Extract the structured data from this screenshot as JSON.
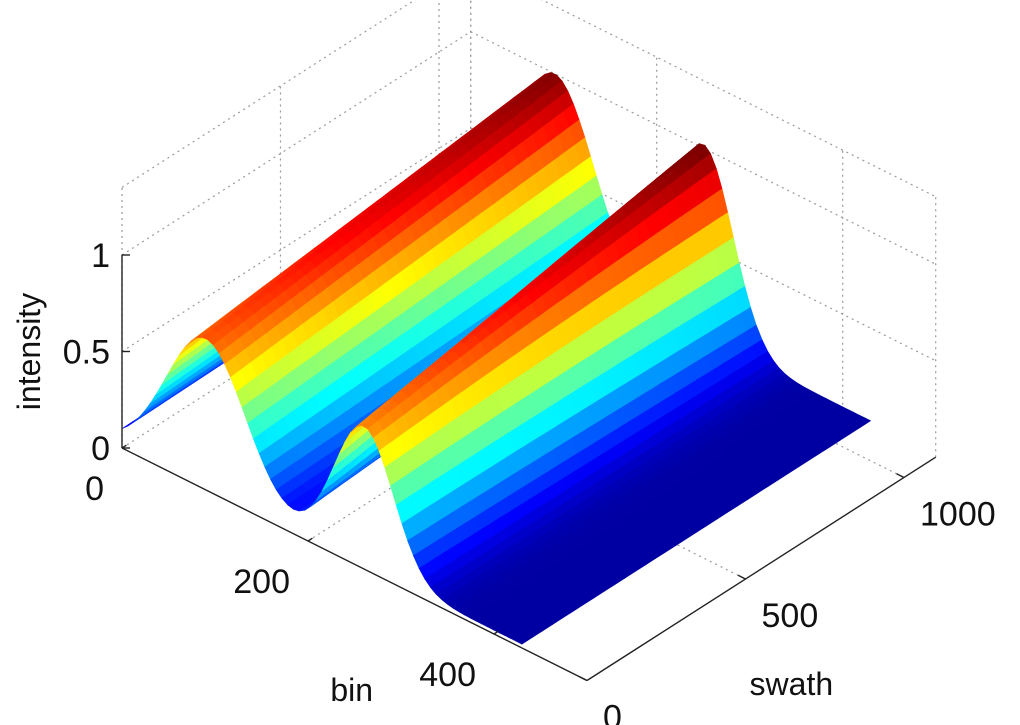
{
  "chart_data": {
    "type": "surface",
    "xlabel": "bin",
    "ylabel": "swath",
    "zlabel": "intensity",
    "xlim": [
      0,
      500
    ],
    "ylim": [
      0,
      1100
    ],
    "zlim": [
      0,
      1
    ],
    "x_ticks": [
      0,
      200,
      400
    ],
    "y_ticks": [
      0,
      500,
      1000
    ],
    "z_ticks": [
      0,
      0.5,
      1
    ],
    "x_tick_labels": [
      "0",
      "200",
      "400"
    ],
    "y_tick_labels": [
      "0",
      "500",
      "1000"
    ],
    "z_tick_labels": [
      "0",
      "0.5",
      "1"
    ],
    "grid": true,
    "colormap": "jet",
    "colormap_stops": [
      "#00008f",
      "#0000ff",
      "#00ffff",
      "#ffff00",
      "#ff0000",
      "#800000"
    ],
    "surface_peaks": [
      {
        "bin_center": 90,
        "bin_width": 60,
        "peak_intensity": 0.98
      },
      {
        "bin_center": 250,
        "bin_width": 45,
        "peak_intensity": 1.0
      }
    ],
    "baseline_intensity": 0.02
  }
}
